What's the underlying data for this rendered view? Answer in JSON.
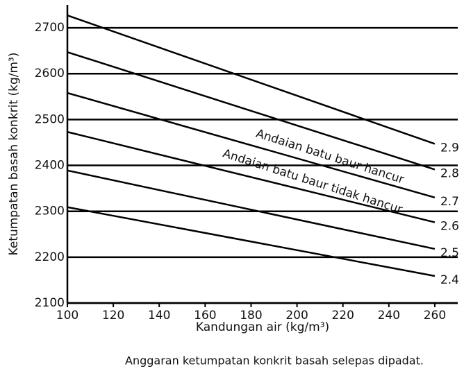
{
  "chart_data": {
    "type": "line",
    "caption": "Anggaran ketumpatan konkrit basah selepas dipadat.",
    "x_label": "Kandungan air (kg/m³)",
    "y_label": "Ketumpatan basah konkrit (kg/m³)",
    "annotations": [
      "Andaian batu baur hancur",
      "Andaian batu baur tidak hancur"
    ],
    "x": [
      100,
      260
    ],
    "series": [
      {
        "name": "2.9",
        "color": "#000000",
        "values": [
          2727,
          2447
        ]
      },
      {
        "name": "2.8",
        "color": "#000000",
        "values": [
          2647,
          2391
        ]
      },
      {
        "name": "2.7",
        "color": "#000000",
        "values": [
          2558,
          2330
        ]
      },
      {
        "name": "2.6",
        "color": "#000000",
        "values": [
          2473,
          2276
        ]
      },
      {
        "name": "2.5",
        "color": "#000000",
        "values": [
          2389,
          2218
        ]
      },
      {
        "name": "2.4",
        "color": "#000000",
        "values": [
          2309,
          2159
        ]
      }
    ],
    "xlim": [
      100,
      270
    ],
    "ylim": [
      2100,
      2750
    ],
    "xticks": [
      100,
      120,
      140,
      160,
      180,
      200,
      220,
      240,
      260
    ],
    "yticks": [
      2100,
      2200,
      2300,
      2400,
      2500,
      2600,
      2700
    ],
    "grid": true
  }
}
